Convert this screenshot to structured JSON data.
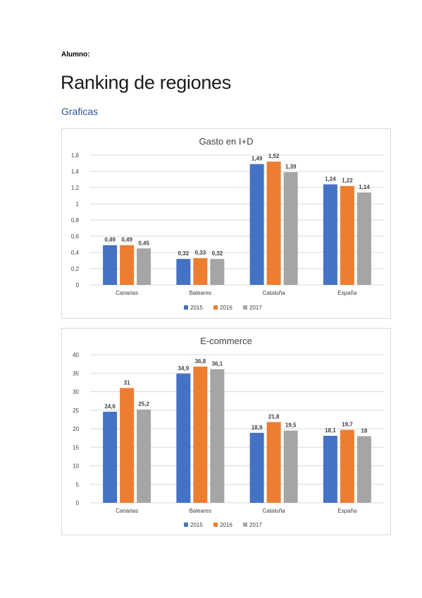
{
  "document": {
    "student_label": "Alumno:",
    "title": "Ranking de regiones",
    "subtitle": "Graficas"
  },
  "colors": {
    "2015": "#4472c4",
    "2016": "#ed7d31",
    "2017": "#a5a5a5",
    "gridline": "#d9d9d9",
    "axis_text": "#404040",
    "heading": "#2f5597"
  },
  "chart_data": [
    {
      "type": "bar",
      "title": "Gasto en I+D",
      "categories": [
        "Canarias",
        "Baleares",
        "Cataluña",
        "España"
      ],
      "series": [
        {
          "name": "2015",
          "values": [
            0.49,
            0.32,
            1.49,
            1.24
          ]
        },
        {
          "name": "2016",
          "values": [
            0.49,
            0.33,
            1.52,
            1.22
          ]
        },
        {
          "name": "2017",
          "values": [
            0.45,
            0.32,
            1.39,
            1.14
          ]
        }
      ],
      "data_labels": [
        [
          "0,49",
          "0,32",
          "1,49",
          "1,24"
        ],
        [
          "0,49",
          "0,33",
          "1,52",
          "1,22"
        ],
        [
          "0,45",
          "0,32",
          "1,39",
          "1,14"
        ]
      ],
      "yticks": [
        0,
        0.2,
        0.4,
        0.6,
        0.8,
        1,
        1.2,
        1.4,
        1.6
      ],
      "ytick_labels": [
        "0",
        "0,2",
        "0,4",
        "0,6",
        "0,8",
        "1",
        "1,2",
        "1,4",
        "1,6"
      ],
      "ylim": [
        0,
        1.6
      ],
      "grid": true,
      "legend": "bottom",
      "xlabel": "",
      "ylabel": ""
    },
    {
      "type": "bar",
      "title": "E-commerce",
      "categories": [
        "Canarias",
        "Baleares",
        "Cataluña",
        "España"
      ],
      "series": [
        {
          "name": "2015",
          "values": [
            24.6,
            34.9,
            18.9,
            18.1
          ]
        },
        {
          "name": "2016",
          "values": [
            31,
            36.8,
            21.8,
            19.7
          ]
        },
        {
          "name": "2017",
          "values": [
            25.2,
            36.1,
            19.5,
            18
          ]
        }
      ],
      "data_labels": [
        [
          "24,6",
          "34,9",
          "18,9",
          "18,1"
        ],
        [
          "31",
          "36,8",
          "21,8",
          "19,7"
        ],
        [
          "25,2",
          "36,1",
          "19,5",
          "18"
        ]
      ],
      "yticks": [
        0,
        5,
        10,
        15,
        20,
        25,
        30,
        35,
        40
      ],
      "ytick_labels": [
        "0",
        "5",
        "10",
        "15",
        "20",
        "25",
        "30",
        "35",
        "40"
      ],
      "ylim": [
        0,
        40
      ],
      "grid": true,
      "legend": "bottom",
      "xlabel": "",
      "ylabel": ""
    }
  ]
}
